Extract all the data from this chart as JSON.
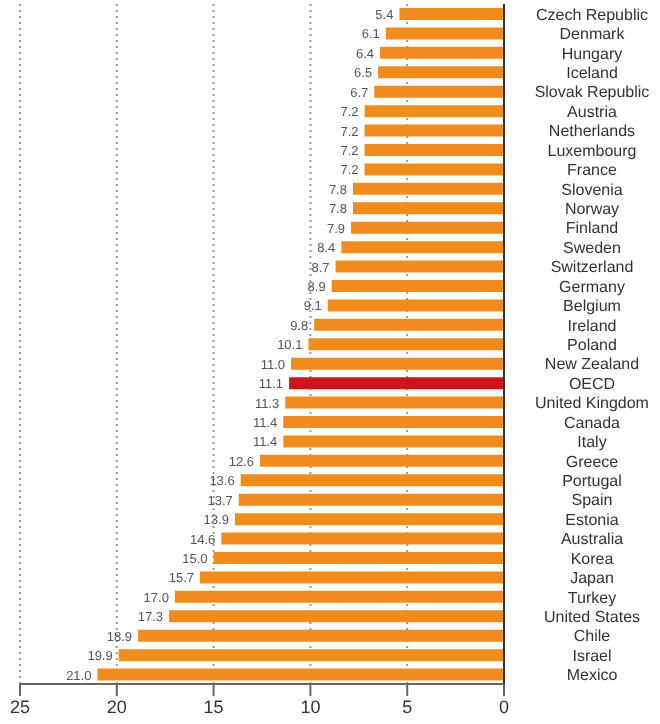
{
  "chart_data": {
    "type": "bar",
    "orientation": "horizontal",
    "categories": [
      "Czech Republic",
      "Denmark",
      "Hungary",
      "Iceland",
      "Slovak Republic",
      "Austria",
      "Netherlands",
      "Luxembourg",
      "France",
      "Slovenia",
      "Norway",
      "Finland",
      "Sweden",
      "Switzerland",
      "Germany",
      "Belgium",
      "Ireland",
      "Poland",
      "New Zealand",
      "OECD",
      "United Kingdom",
      "Canada",
      "Italy",
      "Greece",
      "Portugal",
      "Spain",
      "Estonia",
      "Australia",
      "Korea",
      "Japan",
      "Turkey",
      "United States",
      "Chile",
      "Israel",
      "Mexico"
    ],
    "values": [
      5.4,
      6.1,
      6.4,
      6.5,
      6.7,
      7.2,
      7.2,
      7.2,
      7.2,
      7.8,
      7.8,
      7.9,
      8.4,
      8.7,
      8.9,
      9.1,
      9.8,
      10.1,
      11.0,
      11.1,
      11.3,
      11.4,
      11.4,
      12.6,
      13.6,
      13.7,
      13.9,
      14.6,
      15.0,
      15.7,
      17.0,
      17.3,
      18.9,
      19.9,
      21.0
    ],
    "colors": [
      "#f08c1e",
      "#f08c1e",
      "#f08c1e",
      "#f08c1e",
      "#f08c1e",
      "#f08c1e",
      "#f08c1e",
      "#f08c1e",
      "#f08c1e",
      "#f08c1e",
      "#f08c1e",
      "#f08c1e",
      "#f08c1e",
      "#f08c1e",
      "#f08c1e",
      "#f08c1e",
      "#f08c1e",
      "#f08c1e",
      "#f08c1e",
      "#d0141e",
      "#f08c1e",
      "#f08c1e",
      "#f08c1e",
      "#f08c1e",
      "#f08c1e",
      "#f08c1e",
      "#f08c1e",
      "#f08c1e",
      "#f08c1e",
      "#f08c1e",
      "#f08c1e",
      "#f08c1e",
      "#f08c1e",
      "#f08c1e",
      "#f08c1e"
    ],
    "value_labels": [
      "5.4",
      "6.1",
      "6.4",
      "6.5",
      "6.7",
      "7.2",
      "7.2",
      "7.2",
      "7.2",
      "7.8",
      "7.8",
      "7.9",
      "8.4",
      "8.7",
      "8.9",
      "9.1",
      "9.8",
      "10.1",
      "11.0",
      "11.1",
      "11.3",
      "11.4",
      "11.4",
      "12.6",
      "13.6",
      "13.7",
      "13.9",
      "14.6",
      "15.0",
      "15.7",
      "17.0",
      "17.3",
      "18.9",
      "19.9",
      "21.0"
    ],
    "xlim": [
      25,
      0
    ],
    "xticks": [
      25,
      20,
      15,
      10,
      5,
      0
    ],
    "grid": "x"
  }
}
